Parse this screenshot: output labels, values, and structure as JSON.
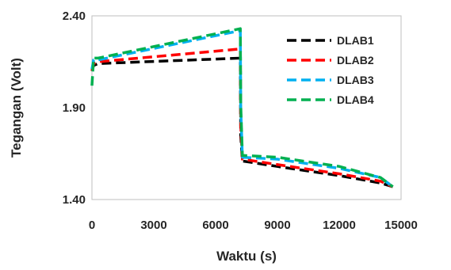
{
  "chart_data": {
    "type": "line",
    "title": "",
    "xlabel": "Waktu (s)",
    "ylabel": "Tegangan (Volt)",
    "xlim": [
      0,
      15000
    ],
    "ylim": [
      1.4,
      2.4
    ],
    "xticks": [
      "0",
      "3000",
      "6000",
      "9000",
      "12000",
      "15000"
    ],
    "xtick_values": [
      0,
      3000,
      6000,
      9000,
      12000,
      15000
    ],
    "yticks": [
      "1.40",
      "1.90",
      "2.40"
    ],
    "ytick_values": [
      1.4,
      1.9,
      2.4
    ],
    "grid": false,
    "legend_position": "right",
    "line_style": "dashed",
    "series": [
      {
        "name": "DLAB1",
        "color": "#000000",
        "x": [
          0,
          80,
          300,
          7200,
          7220,
          7300,
          9000,
          12000,
          14000,
          14600
        ],
        "y": [
          2.1,
          2.13,
          2.14,
          2.17,
          1.75,
          1.61,
          1.58,
          1.53,
          1.49,
          1.47
        ]
      },
      {
        "name": "DLAB2",
        "color": "#ff0000",
        "x": [
          0,
          80,
          300,
          7200,
          7220,
          7300,
          9000,
          12000,
          14000,
          14600
        ],
        "y": [
          2.1,
          2.14,
          2.15,
          2.22,
          1.8,
          1.62,
          1.59,
          1.54,
          1.5,
          1.47
        ]
      },
      {
        "name": "DLAB3",
        "color": "#00b0f0",
        "x": [
          0,
          80,
          300,
          7200,
          7220,
          7300,
          9000,
          12000,
          14000,
          14600
        ],
        "y": [
          2.11,
          2.16,
          2.16,
          2.32,
          1.9,
          1.63,
          1.62,
          1.57,
          1.52,
          1.47
        ]
      },
      {
        "name": "DLAB4",
        "color": "#00b050",
        "x": [
          0,
          80,
          300,
          7200,
          7220,
          7300,
          9000,
          12000,
          14000,
          14600
        ],
        "y": [
          2.02,
          2.17,
          2.17,
          2.33,
          1.92,
          1.64,
          1.63,
          1.58,
          1.52,
          1.47
        ]
      }
    ]
  }
}
